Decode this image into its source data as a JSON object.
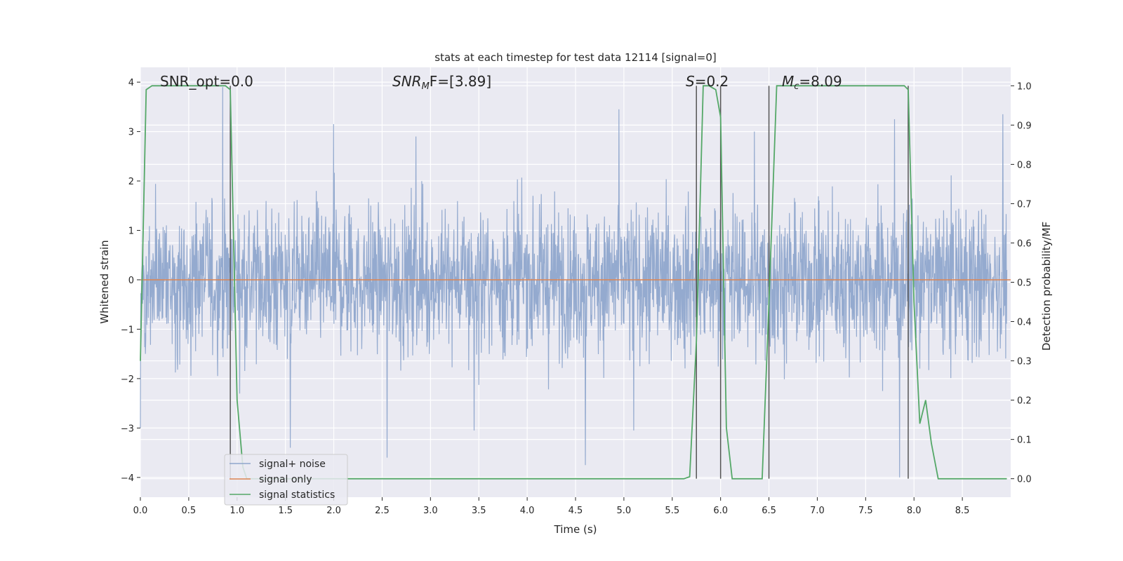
{
  "chart_data": {
    "type": "line",
    "title": "stats at each timestep for test data 12114 [signal=0]",
    "xlabel": "Time (s)",
    "ylabel": "Whitened strain",
    "y2label": "Detection probability/MF",
    "xlim": [
      0.0,
      9.0
    ],
    "ylim": [
      -4.4,
      4.3
    ],
    "y2lim": [
      -0.047,
      1.047
    ],
    "xticks": [
      "0.0",
      "0.5",
      "1.0",
      "1.5",
      "2.0",
      "2.5",
      "3.0",
      "3.5",
      "4.0",
      "4.5",
      "5.0",
      "5.5",
      "6.0",
      "6.5",
      "7.0",
      "7.5",
      "8.0",
      "8.5"
    ],
    "yticks": [
      "4",
      "3",
      "2",
      "1",
      "0",
      "−1",
      "−2",
      "−3",
      "−4"
    ],
    "y2ticks": [
      "1.0",
      "0.9",
      "0.8",
      "0.7",
      "0.6",
      "0.5",
      "0.4",
      "0.3",
      "0.2",
      "0.1",
      "0.0"
    ],
    "grid": true,
    "legend_placement": "lower-left",
    "annotations": {
      "snr_opt": "SNR_opt=0.0",
      "snr_mf_sym": "SNR",
      "snr_mf_sub": "M",
      "snr_mf_rest": "F=[3.89]",
      "s_sym": "S",
      "s_rest": "=0.2",
      "mc_sym": "M",
      "mc_sub": "c",
      "mc_rest": "=8.09"
    },
    "series": [
      {
        "name": "signal+ noise",
        "color": "#8fa6cc",
        "description_amplitude": "whitened noise, typical range -2 to 2, peaks near 4 and -3.8",
        "spikes_up": [
          [
            0.85,
            3.9
          ],
          [
            2.0,
            3.15
          ],
          [
            4.95,
            3.45
          ],
          [
            7.8,
            3.25
          ],
          [
            8.92,
            3.35
          ],
          [
            2.85,
            2.9
          ],
          [
            6.35,
            3.0
          ]
        ],
        "spikes_down": [
          [
            0.0,
            -3.0
          ],
          [
            1.55,
            -3.4
          ],
          [
            2.55,
            -3.6
          ],
          [
            4.6,
            -3.75
          ],
          [
            7.85,
            -4.0
          ],
          [
            3.45,
            -3.05
          ],
          [
            5.1,
            -3.05
          ]
        ]
      },
      {
        "name": "signal only",
        "color": "#dd8452",
        "values_x": [
          0.0,
          9.0
        ],
        "values_y": [
          0.0,
          0.0
        ]
      },
      {
        "name": "signal statistics",
        "color": "#55a868",
        "axis": "right",
        "x": [
          0.0,
          0.06,
          0.12,
          0.2,
          0.88,
          0.93,
          1.0,
          1.06,
          1.1,
          5.62,
          5.68,
          5.75,
          5.82,
          5.88,
          5.95,
          6.0,
          6.06,
          6.12,
          6.2,
          6.43,
          6.5,
          6.58,
          6.64,
          7.9,
          7.94,
          8.0,
          8.06,
          8.12,
          8.18,
          8.25,
          8.96
        ],
        "y": [
          0.3,
          0.99,
          1.0,
          1.0,
          1.0,
          0.99,
          0.2,
          0.03,
          0.0,
          0.0,
          0.005,
          0.35,
          1.0,
          1.0,
          0.99,
          0.92,
          0.13,
          0.0,
          0.0,
          0.0,
          0.45,
          1.0,
          1.0,
          1.0,
          0.99,
          0.45,
          0.14,
          0.2,
          0.09,
          0.0,
          0.0
        ]
      }
    ],
    "vertical_lines_x": [
      0.93,
      5.75,
      6.0,
      6.5,
      7.94
    ]
  }
}
